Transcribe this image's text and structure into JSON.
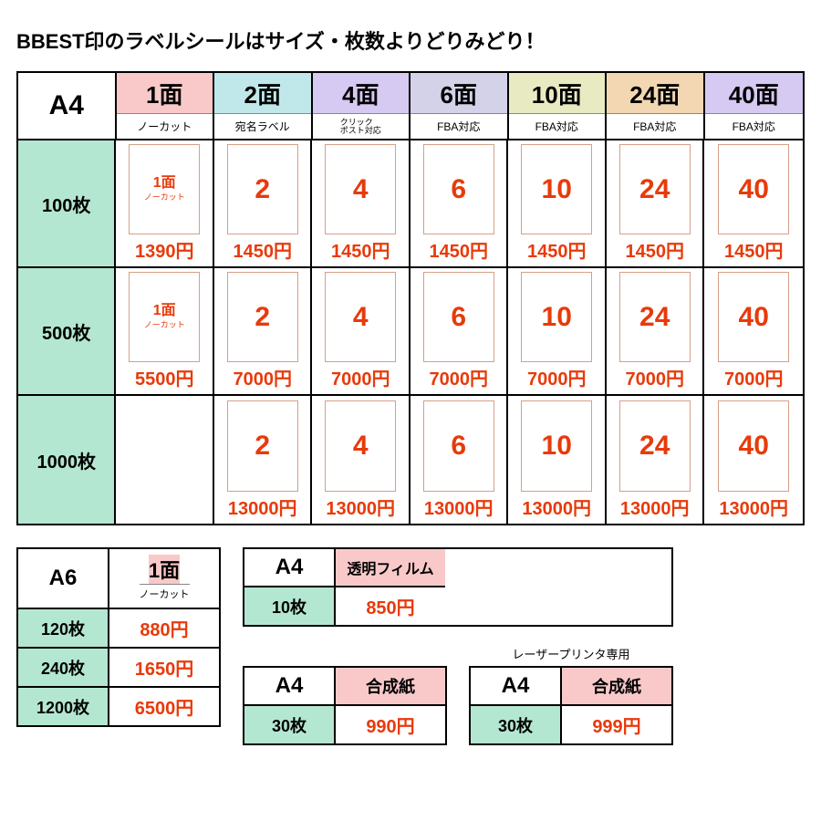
{
  "title": "BBEST印のラベルシールはサイズ・枚数よりどりみどり！",
  "main": {
    "corner": "A4",
    "columns": [
      {
        "top": "1面",
        "bottom": "ノーカット",
        "bg": "#f9c9c9",
        "num": "1面",
        "sub": "ノーカット",
        "numsize": "16px"
      },
      {
        "top": "2面",
        "bottom": "宛名ラベル",
        "bg": "#c0e8ea",
        "num": "2",
        "sub": "",
        "numsize": "30px"
      },
      {
        "top": "4面",
        "bottom": "クリック\nポスト対応",
        "bg": "#d6c9f2",
        "num": "4",
        "sub": "",
        "numsize": "30px"
      },
      {
        "top": "6面",
        "bottom": "FBA対応",
        "bg": "#d3d2e8",
        "num": "6",
        "sub": "",
        "numsize": "30px"
      },
      {
        "top": "10面",
        "bottom": "FBA対応",
        "bg": "#e8ebc2",
        "num": "10",
        "sub": "",
        "numsize": "30px"
      },
      {
        "top": "24面",
        "bottom": "FBA対応",
        "bg": "#f3d7b3",
        "num": "24",
        "sub": "",
        "numsize": "30px"
      },
      {
        "top": "40面",
        "bottom": "FBA対応",
        "bg": "#d6c9f2",
        "num": "40",
        "sub": "",
        "numsize": "30px"
      }
    ],
    "rowlabel_bg": "#b4e7d2",
    "rows": [
      {
        "qty": "100枚",
        "prices": [
          "1390円",
          "1450円",
          "1450円",
          "1450円",
          "1450円",
          "1450円",
          "1450円"
        ],
        "has1": true
      },
      {
        "qty": "500枚",
        "prices": [
          "5500円",
          "7000円",
          "7000円",
          "7000円",
          "7000円",
          "7000円",
          "7000円"
        ],
        "has1": true
      },
      {
        "qty": "1000枚",
        "prices": [
          "",
          "13000円",
          "13000円",
          "13000円",
          "13000円",
          "13000円",
          "13000円"
        ],
        "has1": false
      }
    ],
    "price_color": "#e83a0a",
    "sheet_border": "#d4a088"
  },
  "a6": {
    "size": "A6",
    "head_top": "1面",
    "head_bottom": "ノーカット",
    "head_bg": "#f9c9c9",
    "qty_bg": "#b4e7d2",
    "rows": [
      {
        "qty": "120枚",
        "price": "880円"
      },
      {
        "qty": "240枚",
        "price": "1650円"
      },
      {
        "qty": "1200枚",
        "price": "6500円"
      }
    ]
  },
  "film": {
    "size": "A4",
    "name": "透明フィルム",
    "name_bg": "#f9c9c9",
    "qty": "10枚",
    "qty_bg": "#b4e7d2",
    "price": "850円"
  },
  "gousei1": {
    "size": "A4",
    "name": "合成紙",
    "name_bg": "#f9c9c9",
    "qty": "30枚",
    "qty_bg": "#b4e7d2",
    "price": "990円"
  },
  "gousei2": {
    "note": "レーザープリンタ専用",
    "size": "A4",
    "name": "合成紙",
    "name_bg": "#f9c9c9",
    "qty": "30枚",
    "qty_bg": "#b4e7d2",
    "price": "999円"
  },
  "price_color": "#e83a0a"
}
